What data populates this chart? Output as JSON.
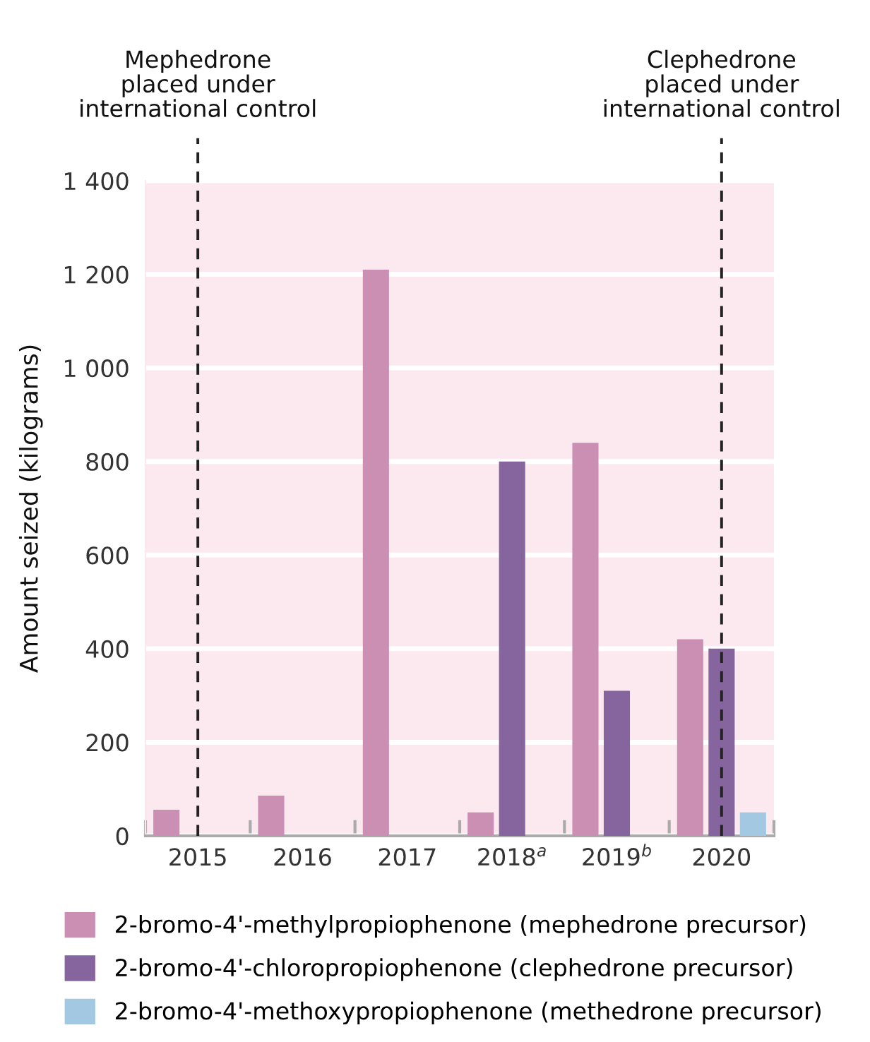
{
  "chart_data": {
    "type": "bar",
    "ylabel": "Amount seized (kilograms)",
    "categories": [
      "2015",
      "2016",
      "2017",
      "2018$^{a}$",
      "2019$^{b}$",
      "2020"
    ],
    "series": [
      {
        "name": "2-bromo-4'-methylpropiophenone (mephedrone precursor)",
        "color": "#cb8fb4",
        "values": [
          56,
          86,
          1210,
          50,
          840,
          420
        ]
      },
      {
        "name": "2-bromo-4'-chloropropiophenone (clephedrone precursor)",
        "color": "#86649e",
        "values": [
          null,
          null,
          null,
          800,
          310,
          400
        ]
      },
      {
        "name": "2-bromo-4'-methoxypropiophenone (methedrone precursor)",
        "color": "#a2c8e2",
        "values": [
          null,
          null,
          null,
          null,
          null,
          50
        ]
      }
    ],
    "ylim": [
      0,
      1400
    ],
    "yticks": [
      0,
      200,
      400,
      600,
      800,
      {
        "value": 1000,
        "label": "1 000"
      },
      {
        "value": 1200,
        "label": "1 200"
      },
      {
        "value": 1400,
        "label": "1 400"
      }
    ],
    "grid": "y",
    "legend": "bottom",
    "ref_lines": [
      {
        "axis": "x",
        "value": "2015",
        "label": "Mephedrone\nplaced under\ninternational control",
        "color": "#222222",
        "line_style": "dashed"
      },
      {
        "axis": "x",
        "value": "2020",
        "label": "Clephedrone\nplaced under\ninternational control",
        "color": "#222222",
        "line_style": "dashed"
      }
    ]
  }
}
